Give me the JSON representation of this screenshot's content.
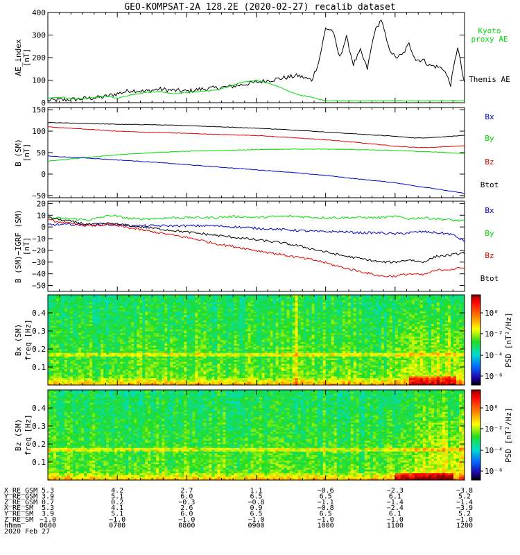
{
  "title": "GEO-KOMPSAT-2A 128.2E (2020-02-27) recalib dataset",
  "colors": {
    "black": "#000000",
    "green": "#00dd00",
    "red": "#e00000",
    "blue": "#0000cc"
  },
  "chart_data": [
    {
      "type": "line",
      "panel": "ae",
      "ylabel": [
        "AE_index",
        "[nT]"
      ],
      "ylim": [
        0,
        400
      ],
      "yticks": [
        0,
        100,
        200,
        300,
        400
      ],
      "ytick_labels": [
        "0",
        "100",
        "200",
        "300",
        "400"
      ],
      "x": [
        6.0,
        6.2,
        6.4,
        6.6,
        6.8,
        7.0,
        7.2,
        7.4,
        7.6,
        7.8,
        8.0,
        8.2,
        8.4,
        8.6,
        8.8,
        9.0,
        9.2,
        9.4,
        9.6,
        9.8,
        9.9,
        10.0,
        10.1,
        10.2,
        10.3,
        10.4,
        10.5,
        10.6,
        10.7,
        10.8,
        10.9,
        11.0,
        11.1,
        11.2,
        11.3,
        11.4,
        11.5,
        11.6,
        11.7,
        11.8,
        11.9,
        12.0
      ],
      "series": [
        {
          "name": "Themis AE",
          "color": "#000000",
          "values": [
            10,
            12,
            15,
            20,
            25,
            40,
            55,
            50,
            60,
            55,
            50,
            60,
            65,
            70,
            80,
            90,
            100,
            110,
            120,
            100,
            180,
            330,
            320,
            200,
            290,
            170,
            230,
            150,
            310,
            370,
            250,
            200,
            210,
            260,
            190,
            190,
            165,
            160,
            150,
            80,
            250,
            80
          ]
        },
        {
          "name": "Kyoto proxy AE",
          "color": "#00dd00",
          "values": [
            20,
            25,
            15,
            20,
            30,
            20,
            35,
            45,
            50,
            40,
            45,
            50,
            55,
            70,
            90,
            100,
            85,
            60,
            35,
            25,
            15,
            10,
            8,
            8,
            8,
            8,
            8,
            8,
            8,
            8,
            8,
            8,
            8,
            8,
            8,
            8,
            8,
            8,
            8,
            8,
            8,
            8
          ]
        }
      ],
      "labels": [
        {
          "text": "Kyoto",
          "color": "#00dd00"
        },
        {
          "text": "proxy AE",
          "color": "#00dd00"
        },
        {
          "text": "Themis AE",
          "color": "#000000"
        }
      ]
    },
    {
      "type": "line",
      "panel": "b",
      "ylabel": [
        "B (SM)",
        "[nT]"
      ],
      "ylim": [
        -55,
        155
      ],
      "yticks": [
        -50,
        0,
        50,
        100,
        150
      ],
      "ytick_labels": [
        "−50",
        "0",
        "50",
        "100",
        "150"
      ],
      "x": [
        6.0,
        6.5,
        7.0,
        7.5,
        8.0,
        8.5,
        9.0,
        9.5,
        10.0,
        10.5,
        11.0,
        11.3,
        11.5,
        12.0
      ],
      "series": [
        {
          "name": "Btot",
          "color": "#000000",
          "values": [
            120,
            118,
            116,
            115,
            113,
            110,
            107,
            103,
            98,
            93,
            88,
            84,
            85,
            90
          ]
        },
        {
          "name": "Bz",
          "color": "#e00000",
          "values": [
            110,
            105,
            100,
            97,
            95,
            92,
            90,
            85,
            80,
            73,
            65,
            62,
            62,
            66
          ]
        },
        {
          "name": "By",
          "color": "#00dd00",
          "values": [
            30,
            38,
            45,
            50,
            53,
            55,
            57,
            58,
            58,
            57,
            55,
            53,
            52,
            48
          ]
        },
        {
          "name": "Bx",
          "color": "#0000cc",
          "values": [
            42,
            38,
            33,
            28,
            22,
            16,
            10,
            4,
            -3,
            -12,
            -20,
            -28,
            -32,
            -45
          ]
        }
      ],
      "labels": [
        {
          "text": "Bx",
          "color": "#0000cc"
        },
        {
          "text": "By",
          "color": "#00dd00"
        },
        {
          "text": "Bz",
          "color": "#e00000"
        },
        {
          "text": "Btot",
          "color": "#000000"
        }
      ]
    },
    {
      "type": "line",
      "panel": "db",
      "ylabel": [
        "B (SM)−IGRF (SM)",
        "[nT]"
      ],
      "ylim": [
        -55,
        22
      ],
      "yticks": [
        -50,
        -40,
        -30,
        -20,
        -10,
        0,
        10,
        20
      ],
      "ytick_labels": [
        "−50",
        "−40",
        "−30",
        "−20",
        "−10",
        "0",
        "10",
        "20"
      ],
      "x": [
        6.0,
        6.3,
        6.6,
        6.9,
        7.2,
        7.5,
        7.8,
        8.1,
        8.4,
        8.7,
        9.0,
        9.3,
        9.6,
        9.9,
        10.2,
        10.5,
        10.8,
        11.0,
        11.2,
        11.4,
        11.6,
        11.8,
        12.0
      ],
      "series": [
        {
          "name": "By",
          "color": "#00dd00",
          "values": [
            8,
            7,
            6,
            10,
            7,
            7,
            8,
            8,
            8,
            9,
            8,
            9,
            9,
            8,
            8,
            8,
            8,
            9,
            7,
            8,
            7,
            6,
            5
          ]
        },
        {
          "name": "Bx",
          "color": "#0000cc",
          "values": [
            2,
            2,
            2,
            2,
            1,
            1,
            1,
            1,
            1,
            0,
            -1,
            -2,
            -3,
            -4,
            -4,
            -5,
            -5,
            -6,
            -5,
            -4,
            -5,
            -6,
            -12
          ]
        },
        {
          "name": "Btot",
          "color": "#000000",
          "values": [
            8,
            5,
            2,
            3,
            1,
            -1,
            -3,
            -5,
            -7,
            -9,
            -11,
            -13,
            -16,
            -20,
            -24,
            -27,
            -30,
            -30,
            -28,
            -30,
            -25,
            -24,
            -22
          ]
        },
        {
          "name": "Bz",
          "color": "#e00000",
          "values": [
            6,
            3,
            1,
            2,
            -1,
            -4,
            -7,
            -10,
            -14,
            -17,
            -20,
            -23,
            -26,
            -29,
            -34,
            -38,
            -42,
            -42,
            -40,
            -41,
            -37,
            -36,
            -35
          ]
        }
      ],
      "labels": [
        {
          "text": "Bx",
          "color": "#0000cc"
        },
        {
          "text": "By",
          "color": "#00dd00"
        },
        {
          "text": "Bz",
          "color": "#e00000"
        },
        {
          "text": "Btot",
          "color": "#000000"
        }
      ]
    },
    {
      "type": "heatmap",
      "panel": "spec_bx",
      "ylabel": [
        "Bx (SM)",
        "freq  [Hz]"
      ],
      "ylim": [
        0,
        0.5
      ],
      "yticks": [
        0.1,
        0.2,
        0.3,
        0.4
      ],
      "ytick_labels": [
        "0.1",
        "0.2",
        "0.3",
        "0.4"
      ],
      "colorbar_label": "PSD [nT²/Hz]",
      "colorbar_ticks": [
        {
          "label": "10⁰",
          "frac": 0.2
        },
        {
          "label": "10⁻²",
          "frac": 0.43
        },
        {
          "label": "10⁻⁴",
          "frac": 0.67
        },
        {
          "label": "10⁻⁶",
          "frac": 0.9
        }
      ],
      "features": {
        "line_freq_hz": 0.17,
        "bright_time": 9.57,
        "enhanced_after": 10.7
      }
    },
    {
      "type": "heatmap",
      "panel": "spec_bz",
      "ylabel": [
        "Bz (SM)",
        "freq  [Hz]"
      ],
      "ylim": [
        0,
        0.5
      ],
      "yticks": [
        0.1,
        0.2,
        0.3,
        0.4
      ],
      "ytick_labels": [
        "0.1",
        "0.2",
        "0.3",
        "0.4"
      ],
      "colorbar_label": "PSD [nT²/Hz]",
      "colorbar_ticks": [
        {
          "label": "10⁰",
          "frac": 0.2
        },
        {
          "label": "10⁻²",
          "frac": 0.43
        },
        {
          "label": "10⁻⁴",
          "frac": 0.67
        },
        {
          "label": "10⁻⁶",
          "frac": 0.9
        }
      ],
      "features": {
        "line_freq_hz": 0.17,
        "bright_time": 9.57,
        "enhanced_after": 10.7
      }
    }
  ],
  "xaxis": {
    "xlim": [
      6,
      12
    ],
    "ticks": [
      6,
      7,
      8,
      9,
      10,
      11,
      12
    ],
    "minor_per_major": 6
  },
  "ephemeris": {
    "rows": [
      {
        "name": "X_RE_GSM",
        "values": [
          "5.3",
          "4.2",
          "2.7",
          "1.1",
          "−0.6",
          "−2.3",
          "−3.8"
        ]
      },
      {
        "name": "Y_RE_GSM",
        "values": [
          "3.9",
          "5.1",
          "6.0",
          "6.5",
          "6.5",
          "6.1",
          "5.2"
        ]
      },
      {
        "name": "Z_RE_GSM",
        "values": [
          "0.7",
          "0.2",
          "−0.3",
          "−0.8",
          "−1.1",
          "−1.4",
          "−1.4"
        ]
      },
      {
        "name": "X_RE_SM",
        "values": [
          "5.3",
          "4.1",
          "2.6",
          "0.9",
          "−0.8",
          "−2.4",
          "−3.9"
        ]
      },
      {
        "name": "Y_RE_SM",
        "values": [
          "3.9",
          "5.1",
          "6.0",
          "6.5",
          "6.5",
          "6.1",
          "5.2"
        ]
      },
      {
        "name": "Z_RE_SM",
        "values": [
          "−1.0",
          "−1.0",
          "−1.0",
          "−1.0",
          "−1.0",
          "−1.0",
          "−1.0"
        ]
      },
      {
        "name": "hhmm",
        "values": [
          "0600",
          "0700",
          "0800",
          "0900",
          "1000",
          "1100",
          "1200"
        ]
      }
    ],
    "date": "2020 Feb 27"
  }
}
